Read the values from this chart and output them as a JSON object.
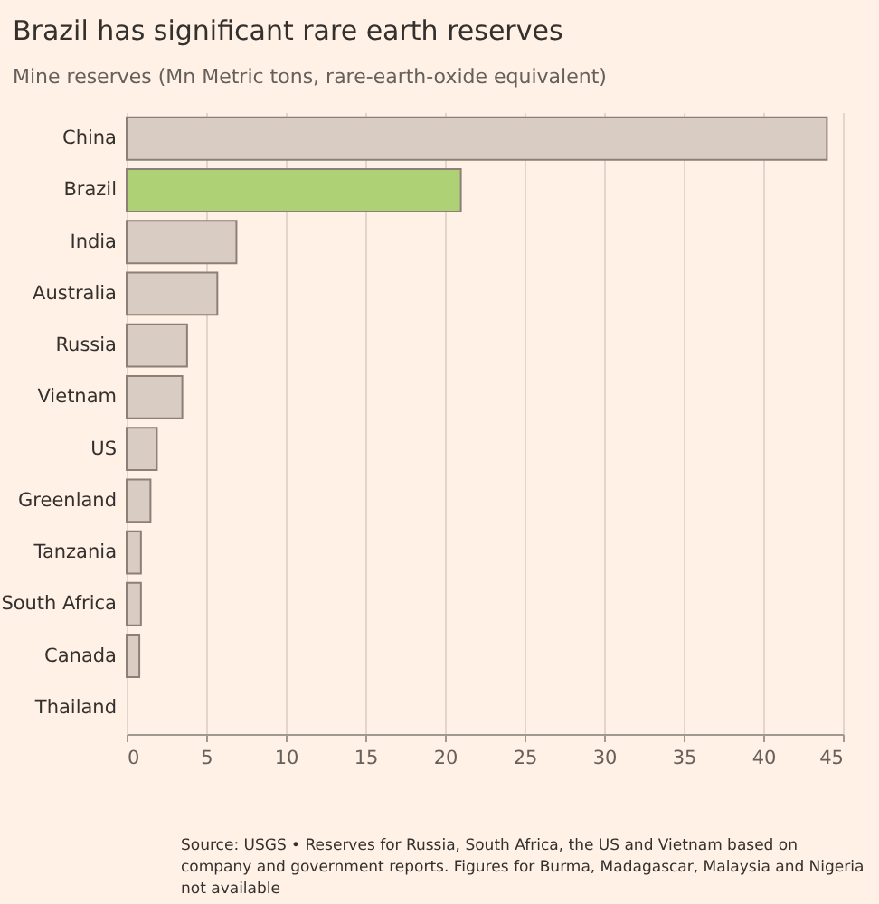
{
  "chart_data": {
    "type": "bar",
    "orientation": "horizontal",
    "title": "Brazil has significant rare earth reserves",
    "subtitle": "Mine reserves (Mn Metric tons, rare-earth-oxide equivalent)",
    "categories": [
      "China",
      "Brazil",
      "India",
      "Australia",
      "Russia",
      "Vietnam",
      "US",
      "Greenland",
      "Tanzania",
      "South Africa",
      "Canada",
      "Thailand"
    ],
    "values": [
      44,
      21,
      6.9,
      5.7,
      3.8,
      3.5,
      1.9,
      1.5,
      0.9,
      0.9,
      0.8,
      0
    ],
    "colors": [
      "#d9ccc3",
      "#add174",
      "#d9ccc3",
      "#d9ccc3",
      "#d9ccc3",
      "#d9ccc3",
      "#d9ccc3",
      "#d9ccc3",
      "#d9ccc3",
      "#d9ccc3",
      "#d9ccc3",
      "#d9ccc3"
    ],
    "xlim": [
      0,
      45
    ],
    "xticks": [
      0,
      5,
      10,
      15,
      20,
      25,
      30,
      35,
      40,
      45
    ],
    "grid": "x",
    "annotations": [
      "Source: USGS • Reserves for Russia, South Africa, the US and Vietnam based on company and government reports. Figures for Burma, Madagascar, Malaysia and Nigeria not available"
    ]
  }
}
